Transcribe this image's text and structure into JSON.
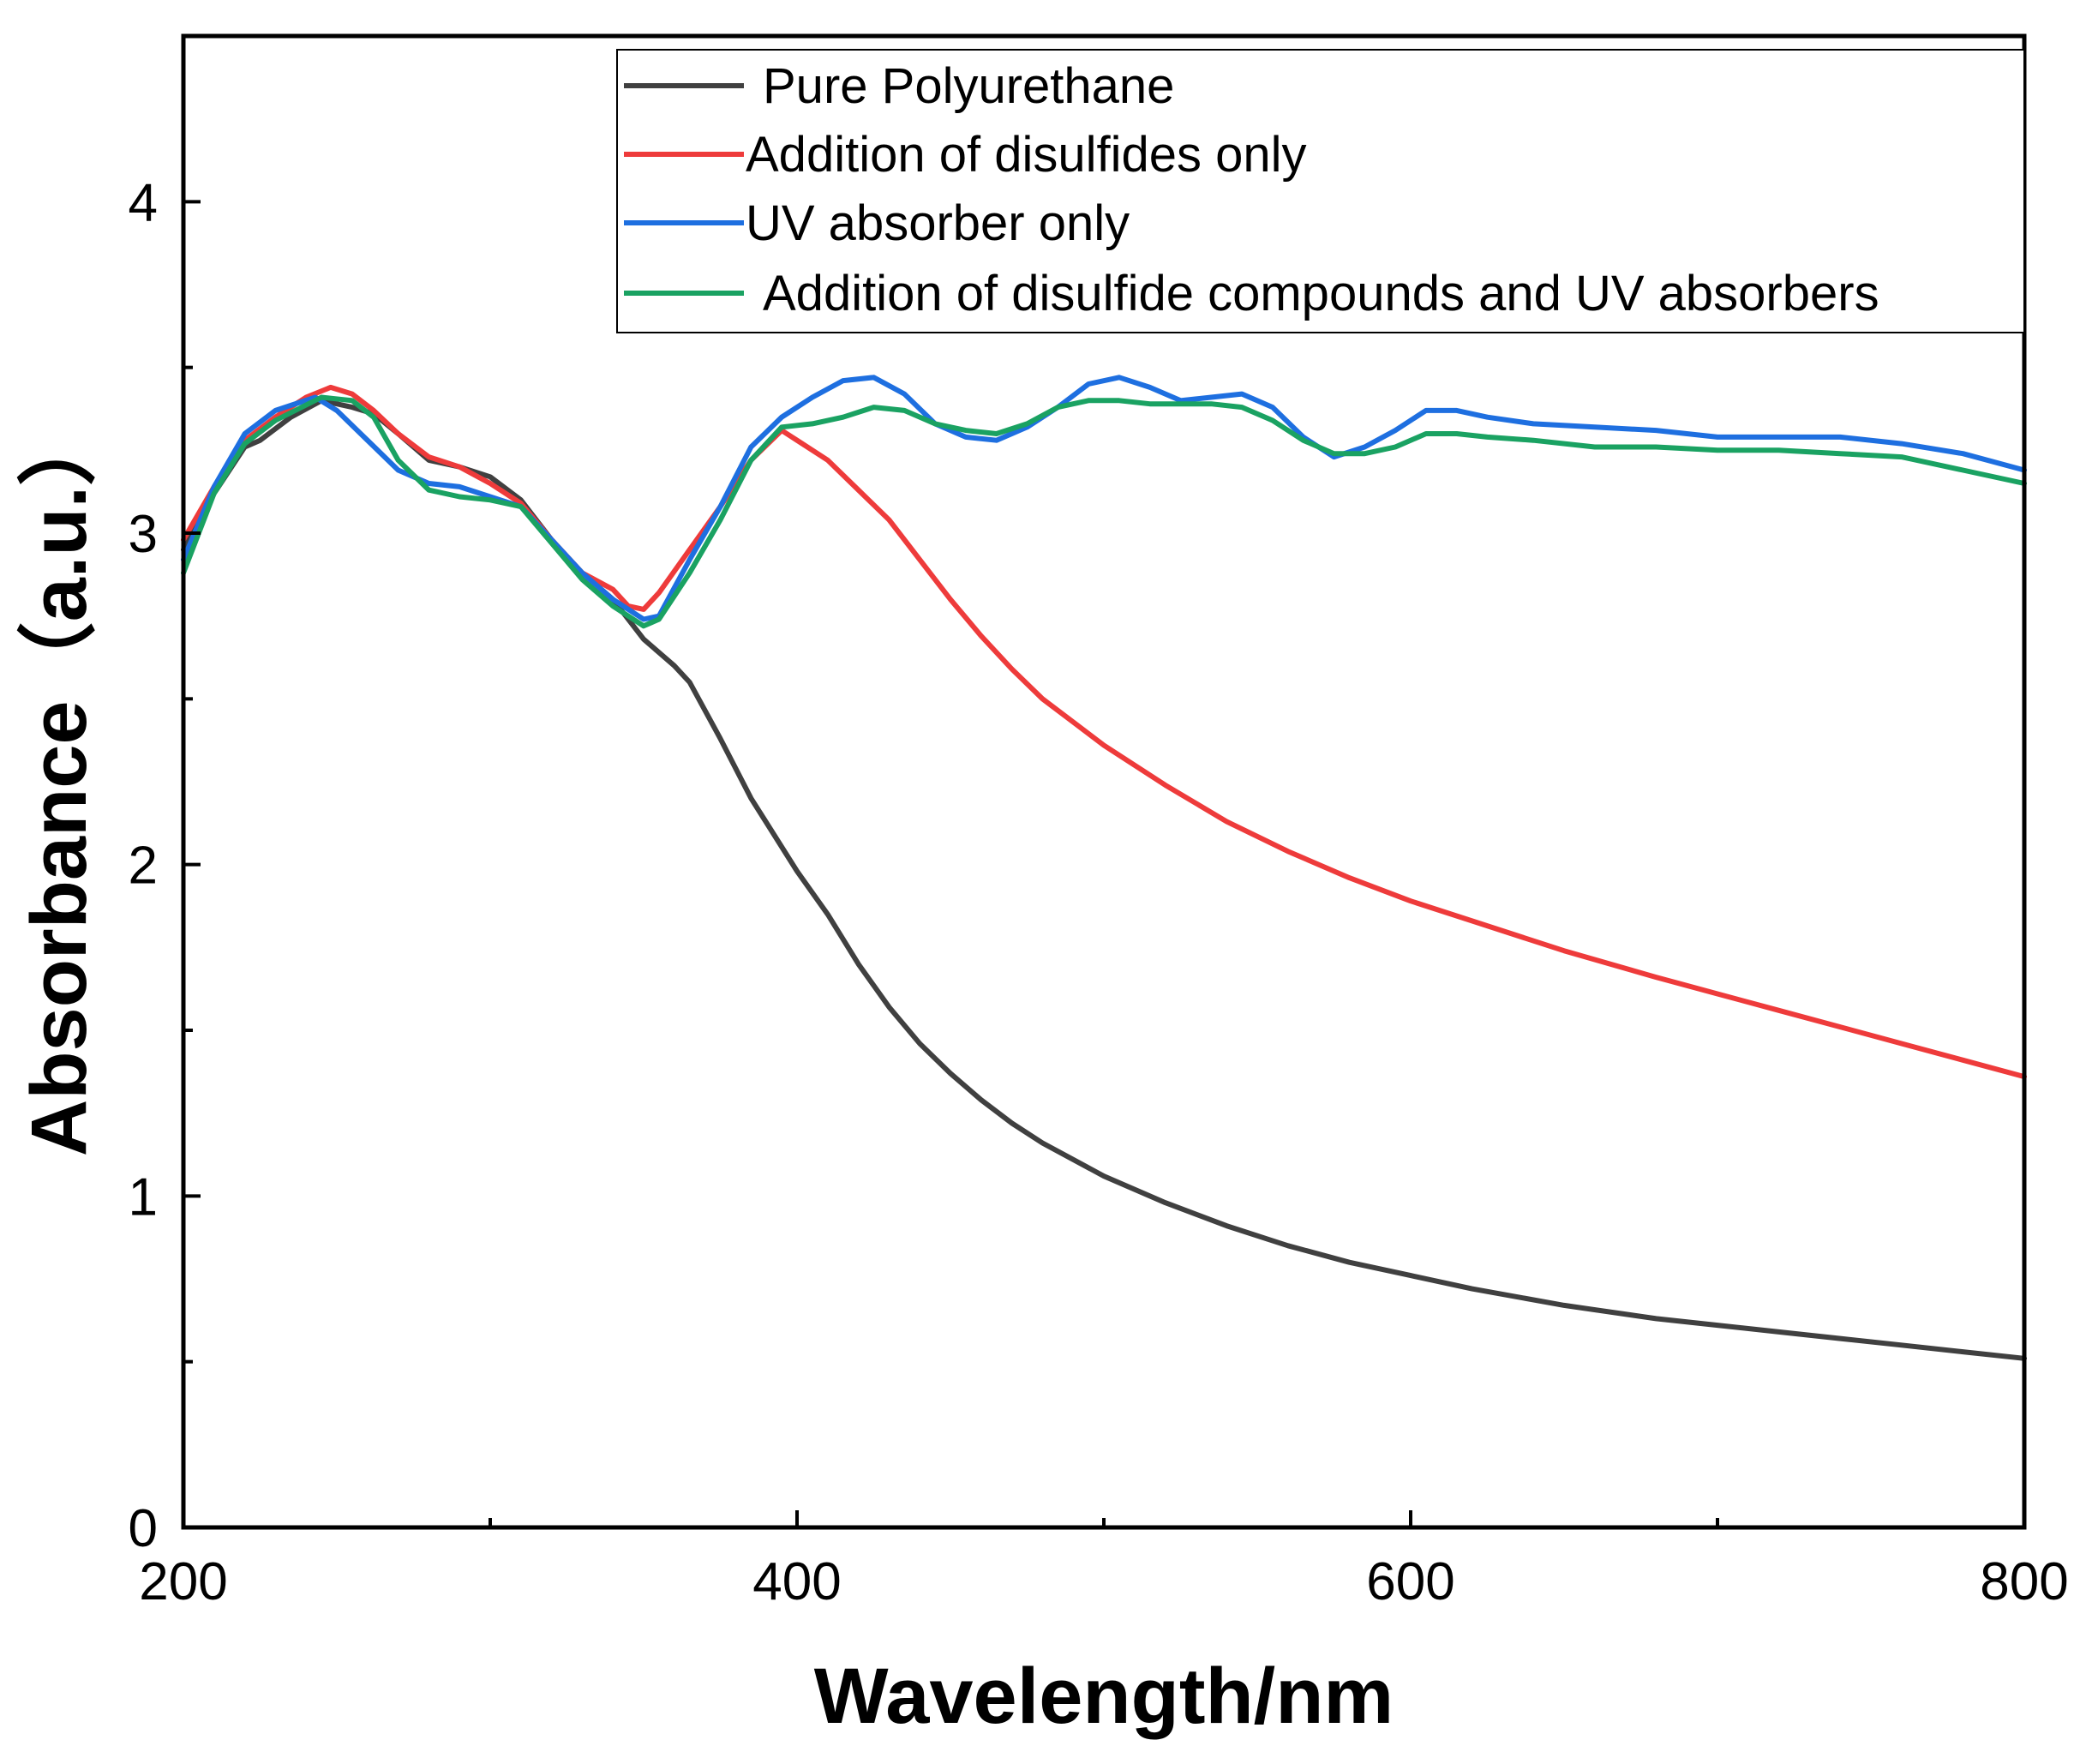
{
  "chart_data": {
    "type": "line",
    "title": "",
    "xlabel": "Wavelength/nm",
    "ylabel": "Absorbance（a.u.）",
    "xlim": [
      200,
      800
    ],
    "ylim": [
      0,
      4.5
    ],
    "x_ticks": [
      200,
      400,
      600,
      800
    ],
    "x_minor_ticks": [
      300,
      500,
      700
    ],
    "y_ticks": [
      0,
      1,
      2,
      3,
      4
    ],
    "y_minor_ticks": [
      0.5,
      1.5,
      2.5,
      3.5
    ],
    "legend_position": "top-right",
    "series": [
      {
        "name": "Pure Polyurethane",
        "color": "#404040",
        "points": [
          [
            200,
            2.95
          ],
          [
            210,
            3.12
          ],
          [
            220,
            3.26
          ],
          [
            225,
            3.28
          ],
          [
            235,
            3.35
          ],
          [
            245,
            3.4
          ],
          [
            255,
            3.38
          ],
          [
            262,
            3.36
          ],
          [
            270,
            3.3
          ],
          [
            280,
            3.22
          ],
          [
            290,
            3.2
          ],
          [
            300,
            3.17
          ],
          [
            310,
            3.1
          ],
          [
            320,
            2.98
          ],
          [
            330,
            2.88
          ],
          [
            340,
            2.8
          ],
          [
            350,
            2.68
          ],
          [
            360,
            2.6
          ],
          [
            365,
            2.55
          ],
          [
            375,
            2.38
          ],
          [
            385,
            2.2
          ],
          [
            400,
            1.98
          ],
          [
            410,
            1.85
          ],
          [
            420,
            1.7
          ],
          [
            430,
            1.57
          ],
          [
            440,
            1.46
          ],
          [
            450,
            1.37
          ],
          [
            460,
            1.29
          ],
          [
            470,
            1.22
          ],
          [
            480,
            1.16
          ],
          [
            500,
            1.06
          ],
          [
            520,
            0.98
          ],
          [
            540,
            0.91
          ],
          [
            560,
            0.85
          ],
          [
            580,
            0.8
          ],
          [
            600,
            0.76
          ],
          [
            620,
            0.72
          ],
          [
            650,
            0.67
          ],
          [
            680,
            0.63
          ],
          [
            700,
            0.61
          ],
          [
            720,
            0.59
          ],
          [
            740,
            0.57
          ],
          [
            760,
            0.55
          ],
          [
            780,
            0.53
          ],
          [
            800,
            0.51
          ]
        ]
      },
      {
        "name": "Addition of disulfides only",
        "color": "#EE3B3B",
        "points": [
          [
            200,
            2.98
          ],
          [
            210,
            3.14
          ],
          [
            220,
            3.28
          ],
          [
            230,
            3.35
          ],
          [
            240,
            3.41
          ],
          [
            248,
            3.44
          ],
          [
            255,
            3.42
          ],
          [
            262,
            3.37
          ],
          [
            270,
            3.3
          ],
          [
            280,
            3.23
          ],
          [
            290,
            3.2
          ],
          [
            300,
            3.15
          ],
          [
            310,
            3.09
          ],
          [
            320,
            2.98
          ],
          [
            330,
            2.88
          ],
          [
            340,
            2.83
          ],
          [
            345,
            2.78
          ],
          [
            350,
            2.77
          ],
          [
            355,
            2.82
          ],
          [
            365,
            2.95
          ],
          [
            375,
            3.08
          ],
          [
            385,
            3.22
          ],
          [
            395,
            3.31
          ],
          [
            400,
            3.28
          ],
          [
            410,
            3.22
          ],
          [
            420,
            3.13
          ],
          [
            430,
            3.04
          ],
          [
            440,
            2.92
          ],
          [
            450,
            2.8
          ],
          [
            460,
            2.69
          ],
          [
            470,
            2.59
          ],
          [
            480,
            2.5
          ],
          [
            490,
            2.43
          ],
          [
            500,
            2.36
          ],
          [
            520,
            2.24
          ],
          [
            540,
            2.13
          ],
          [
            560,
            2.04
          ],
          [
            580,
            1.96
          ],
          [
            600,
            1.89
          ],
          [
            620,
            1.83
          ],
          [
            650,
            1.74
          ],
          [
            680,
            1.66
          ],
          [
            700,
            1.61
          ],
          [
            720,
            1.56
          ],
          [
            740,
            1.51
          ],
          [
            760,
            1.46
          ],
          [
            780,
            1.41
          ],
          [
            800,
            1.36
          ]
        ]
      },
      {
        "name": "UV absorber only",
        "color": "#1E6FE0",
        "points": [
          [
            200,
            2.92
          ],
          [
            210,
            3.14
          ],
          [
            220,
            3.3
          ],
          [
            230,
            3.37
          ],
          [
            243,
            3.41
          ],
          [
            250,
            3.37
          ],
          [
            260,
            3.28
          ],
          [
            270,
            3.19
          ],
          [
            280,
            3.15
          ],
          [
            290,
            3.14
          ],
          [
            300,
            3.11
          ],
          [
            310,
            3.08
          ],
          [
            320,
            2.98
          ],
          [
            330,
            2.88
          ],
          [
            340,
            2.8
          ],
          [
            350,
            2.74
          ],
          [
            355,
            2.75
          ],
          [
            365,
            2.92
          ],
          [
            375,
            3.08
          ],
          [
            385,
            3.26
          ],
          [
            395,
            3.35
          ],
          [
            405,
            3.41
          ],
          [
            415,
            3.46
          ],
          [
            425,
            3.47
          ],
          [
            435,
            3.42
          ],
          [
            445,
            3.33
          ],
          [
            455,
            3.29
          ],
          [
            465,
            3.28
          ],
          [
            475,
            3.32
          ],
          [
            485,
            3.38
          ],
          [
            495,
            3.45
          ],
          [
            505,
            3.47
          ],
          [
            515,
            3.44
          ],
          [
            525,
            3.4
          ],
          [
            535,
            3.41
          ],
          [
            545,
            3.42
          ],
          [
            555,
            3.38
          ],
          [
            565,
            3.29
          ],
          [
            575,
            3.23
          ],
          [
            585,
            3.26
          ],
          [
            595,
            3.31
          ],
          [
            605,
            3.37
          ],
          [
            615,
            3.37
          ],
          [
            625,
            3.35
          ],
          [
            640,
            3.33
          ],
          [
            660,
            3.32
          ],
          [
            680,
            3.31
          ],
          [
            700,
            3.29
          ],
          [
            720,
            3.29
          ],
          [
            740,
            3.29
          ],
          [
            760,
            3.27
          ],
          [
            780,
            3.24
          ],
          [
            800,
            3.19
          ]
        ]
      },
      {
        "name": "Addition of disulfide compounds and UV absorbers",
        "color": "#1AA262",
        "points": [
          [
            200,
            2.88
          ],
          [
            210,
            3.12
          ],
          [
            220,
            3.27
          ],
          [
            230,
            3.34
          ],
          [
            245,
            3.41
          ],
          [
            255,
            3.4
          ],
          [
            262,
            3.35
          ],
          [
            270,
            3.22
          ],
          [
            280,
            3.13
          ],
          [
            290,
            3.11
          ],
          [
            300,
            3.1
          ],
          [
            310,
            3.08
          ],
          [
            320,
            2.97
          ],
          [
            330,
            2.86
          ],
          [
            340,
            2.78
          ],
          [
            350,
            2.72
          ],
          [
            355,
            2.74
          ],
          [
            365,
            2.88
          ],
          [
            375,
            3.04
          ],
          [
            385,
            3.22
          ],
          [
            395,
            3.32
          ],
          [
            405,
            3.33
          ],
          [
            415,
            3.35
          ],
          [
            425,
            3.38
          ],
          [
            435,
            3.37
          ],
          [
            445,
            3.33
          ],
          [
            455,
            3.31
          ],
          [
            465,
            3.3
          ],
          [
            475,
            3.33
          ],
          [
            485,
            3.38
          ],
          [
            495,
            3.4
          ],
          [
            505,
            3.4
          ],
          [
            515,
            3.39
          ],
          [
            525,
            3.39
          ],
          [
            535,
            3.39
          ],
          [
            545,
            3.38
          ],
          [
            555,
            3.34
          ],
          [
            565,
            3.28
          ],
          [
            575,
            3.24
          ],
          [
            585,
            3.24
          ],
          [
            595,
            3.26
          ],
          [
            605,
            3.3
          ],
          [
            615,
            3.3
          ],
          [
            625,
            3.29
          ],
          [
            640,
            3.28
          ],
          [
            660,
            3.26
          ],
          [
            680,
            3.26
          ],
          [
            700,
            3.25
          ],
          [
            720,
            3.25
          ],
          [
            740,
            3.24
          ],
          [
            760,
            3.23
          ],
          [
            780,
            3.19
          ],
          [
            800,
            3.15
          ]
        ]
      }
    ]
  }
}
